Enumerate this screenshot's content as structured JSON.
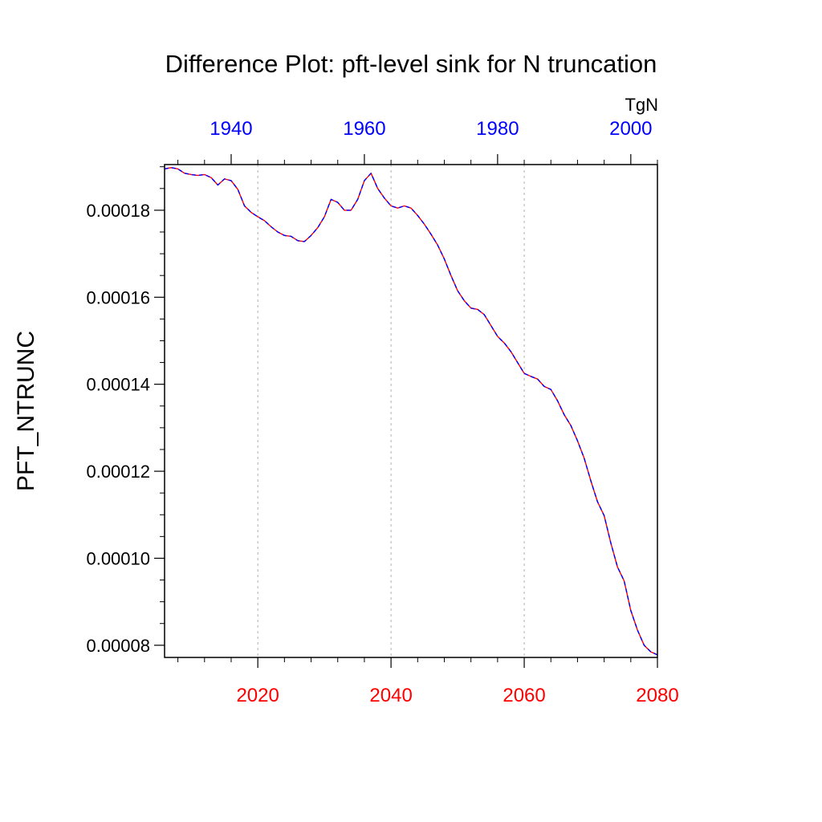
{
  "chart_data": {
    "type": "line",
    "title": "Difference Plot: pft-level sink for N truncation",
    "ylabel": "PFT_NTRUNC",
    "units_label": "TgN",
    "bottom_axis": {
      "range": [
        2006,
        2080
      ],
      "ticks": [
        2020,
        2040,
        2060,
        2080
      ],
      "tick_labels": [
        "2020",
        "2040",
        "2060",
        "2080"
      ],
      "color": "#ff0000"
    },
    "top_axis": {
      "range": [
        1930,
        2004
      ],
      "ticks": [
        1940,
        1960,
        1980,
        2000
      ],
      "tick_labels": [
        "1940",
        "1960",
        "1980",
        "2000"
      ],
      "color": "#0000ff"
    },
    "y_axis": {
      "range": [
        7.72e-05,
        0.0001905
      ],
      "ticks": [
        8e-05,
        0.0001,
        0.00012,
        0.00014,
        0.00016,
        0.00018
      ],
      "tick_labels": [
        "0.00008",
        "0.00010",
        "0.00012",
        "0.00014",
        "0.00016",
        "0.00018"
      ]
    },
    "vertical_gridlines": true,
    "series": [
      {
        "axis": "bottom",
        "color": "#ff0000",
        "dash": "solid",
        "x": [
          2006,
          2007,
          2008,
          2009,
          2010,
          2011,
          2012,
          2013,
          2014,
          2015,
          2016,
          2017,
          2018,
          2019,
          2020,
          2021,
          2022,
          2023,
          2024,
          2025,
          2026,
          2027,
          2028,
          2029,
          2030,
          2031,
          2032,
          2033,
          2034,
          2035,
          2036,
          2037,
          2038,
          2039,
          2040,
          2041,
          2042,
          2043,
          2044,
          2045,
          2046,
          2047,
          2048,
          2049,
          2050,
          2051,
          2052,
          2053,
          2054,
          2055,
          2056,
          2057,
          2058,
          2059,
          2060,
          2061,
          2062,
          2063,
          2064,
          2065,
          2066,
          2067,
          2068,
          2069,
          2070,
          2071,
          2072,
          2073,
          2074,
          2075,
          2076,
          2077,
          2078,
          2079,
          2080
        ],
        "y": [
          0.0001895,
          0.0001898,
          0.0001895,
          0.0001885,
          0.0001882,
          0.000188,
          0.0001882,
          0.0001875,
          0.0001858,
          0.0001872,
          0.0001868,
          0.0001848,
          0.000181,
          0.0001795,
          0.0001785,
          0.0001776,
          0.0001762,
          0.000175,
          0.0001742,
          0.000174,
          0.000173,
          0.0001728,
          0.0001742,
          0.000176,
          0.0001785,
          0.0001825,
          0.0001818,
          0.00018,
          0.00018,
          0.0001825,
          0.0001868,
          0.0001885,
          0.000185,
          0.0001828,
          0.000181,
          0.0001805,
          0.000181,
          0.0001805,
          0.0001788,
          0.0001768,
          0.0001745,
          0.000172,
          0.0001688,
          0.000165,
          0.0001615,
          0.0001592,
          0.0001575,
          0.0001572,
          0.000156,
          0.0001535,
          0.000151,
          0.0001495,
          0.0001475,
          0.000145,
          0.0001425,
          0.0001418,
          0.0001412,
          0.0001395,
          0.0001388,
          0.0001362,
          0.000133,
          0.0001305,
          0.000127,
          0.000123,
          0.0001178,
          0.000113,
          0.0001098,
          0.0001035,
          9.8e-05,
          9.48e-05,
          8.8e-05,
          8.35e-05,
          8e-05,
          7.85e-05,
          7.78e-05
        ]
      },
      {
        "axis": "top",
        "color": "#0000ff",
        "dash": "dashed",
        "x": [
          1930,
          1931,
          1932,
          1933,
          1934,
          1935,
          1936,
          1937,
          1938,
          1939,
          1940,
          1941,
          1942,
          1943,
          1944,
          1945,
          1946,
          1947,
          1948,
          1949,
          1950,
          1951,
          1952,
          1953,
          1954,
          1955,
          1956,
          1957,
          1958,
          1959,
          1960,
          1961,
          1962,
          1963,
          1964,
          1965,
          1966,
          1967,
          1968,
          1969,
          1970,
          1971,
          1972,
          1973,
          1974,
          1975,
          1976,
          1977,
          1978,
          1979,
          1980,
          1981,
          1982,
          1983,
          1984,
          1985,
          1986,
          1987,
          1988,
          1989,
          1990,
          1991,
          1992,
          1993,
          1994,
          1995,
          1996,
          1997,
          1998,
          1999,
          2000,
          2001,
          2002,
          2003,
          2004
        ],
        "y": [
          0.0001895,
          0.0001898,
          0.0001895,
          0.0001885,
          0.0001882,
          0.000188,
          0.0001882,
          0.0001875,
          0.0001858,
          0.0001872,
          0.0001868,
          0.0001848,
          0.000181,
          0.0001795,
          0.0001785,
          0.0001776,
          0.0001762,
          0.000175,
          0.0001742,
          0.000174,
          0.000173,
          0.0001728,
          0.0001742,
          0.000176,
          0.0001785,
          0.0001825,
          0.0001818,
          0.00018,
          0.00018,
          0.0001825,
          0.0001868,
          0.0001885,
          0.000185,
          0.0001828,
          0.000181,
          0.0001805,
          0.000181,
          0.0001805,
          0.0001788,
          0.0001768,
          0.0001745,
          0.000172,
          0.0001688,
          0.000165,
          0.0001615,
          0.0001592,
          0.0001575,
          0.0001572,
          0.000156,
          0.0001535,
          0.000151,
          0.0001495,
          0.0001475,
          0.000145,
          0.0001425,
          0.0001418,
          0.0001412,
          0.0001395,
          0.0001388,
          0.0001362,
          0.000133,
          0.0001305,
          0.000127,
          0.000123,
          0.0001178,
          0.000113,
          0.0001098,
          0.0001035,
          9.8e-05,
          9.48e-05,
          8.8e-05,
          8.35e-05,
          8e-05,
          7.85e-05,
          7.78e-05
        ]
      }
    ]
  }
}
